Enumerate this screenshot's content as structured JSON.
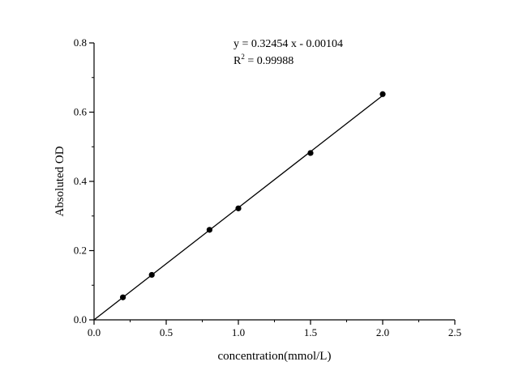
{
  "chart_data": {
    "type": "scatter",
    "xlabel": "concentration(mmol/L)",
    "ylabel": "Absoluted OD",
    "xlim": [
      0,
      2.5
    ],
    "ylim": [
      0,
      0.8
    ],
    "x_ticks": [
      "0.0",
      "0.5",
      "1.0",
      "1.5",
      "2.0",
      "2.5"
    ],
    "y_ticks": [
      "0.0",
      "0.2",
      "0.4",
      "0.6",
      "0.8"
    ],
    "x_tick_values": [
      0,
      0.5,
      1.0,
      1.5,
      2.0,
      2.5
    ],
    "y_tick_values": [
      0,
      0.2,
      0.4,
      0.6,
      0.8
    ],
    "x_minor_step": 0.25,
    "y_minor_step": 0.1,
    "grid": false,
    "points": [
      {
        "x": 0,
        "y": 0
      },
      {
        "x": 0.2,
        "y": 0.065
      },
      {
        "x": 0.4,
        "y": 0.13
      },
      {
        "x": 0.8,
        "y": 0.26
      },
      {
        "x": 1.0,
        "y": 0.322
      },
      {
        "x": 1.5,
        "y": 0.482
      },
      {
        "x": 2.0,
        "y": 0.652
      }
    ],
    "fit": {
      "slope": 0.32454,
      "intercept": -0.00104,
      "x_range": [
        0,
        2.0
      ]
    },
    "annotations": {
      "equation": "y = 0.32454 x - 0.00104",
      "r2_base": "R",
      "r2_sup": "2",
      "r2_value": " = 0.99988"
    },
    "marker_color": "#000000",
    "line_color": "#000000"
  }
}
